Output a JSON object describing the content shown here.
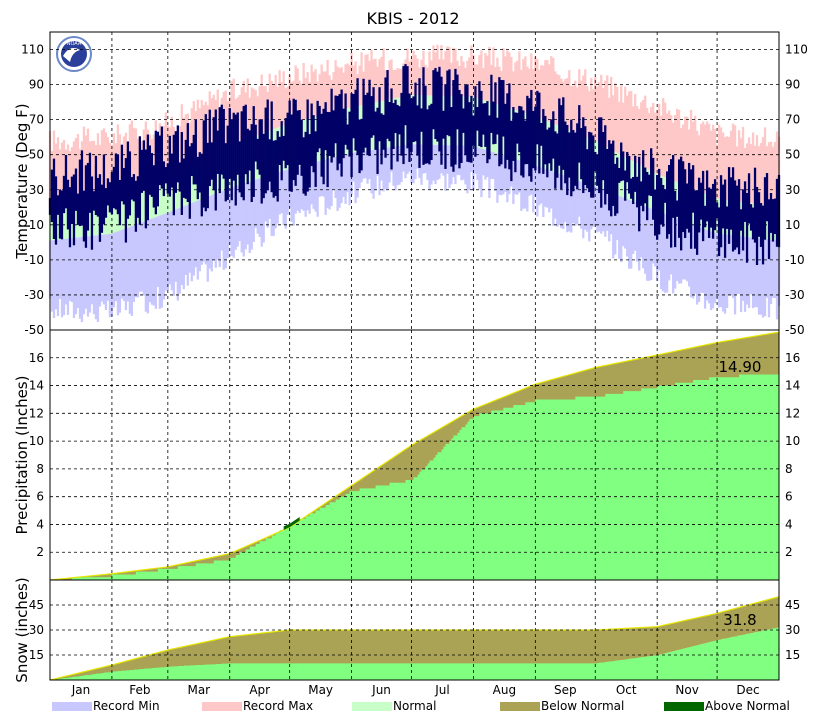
{
  "chart_data": {
    "type": "area",
    "title": "KBIS - 2012",
    "logo_text": "NOAA",
    "months": [
      "Jan",
      "Feb",
      "Mar",
      "Apr",
      "May",
      "Jun",
      "Jul",
      "Aug",
      "Sep",
      "Oct",
      "Nov",
      "Dec"
    ],
    "legend": [
      {
        "label": "Record Min",
        "color": "#c8c8ff"
      },
      {
        "label": "Record Max",
        "color": "#ffc8c8"
      },
      {
        "label": "Normal",
        "color": "#c8ffc8"
      },
      {
        "label": "Below Normal",
        "color": "#aaa355"
      },
      {
        "label": "Above Normal",
        "color": "#006600"
      }
    ],
    "colors": {
      "record_min": "#c8c8ff",
      "record_max": "#ffc8c8",
      "normal": "#c8ffc8",
      "observed_temp": "#000066",
      "observed_precip": "#80ff80",
      "normal_precip_fill": "#aaa355",
      "normal_line": "#e6e600",
      "above_normal": "#006600"
    },
    "panels": [
      {
        "id": "temperature",
        "ylabel": "Temperature (Deg F)",
        "ylim": [
          -50,
          120
        ],
        "yticks": [
          110,
          90,
          70,
          50,
          30,
          10,
          -10,
          -30,
          -50
        ],
        "ytick_labels": [
          "110",
          "90",
          "70",
          "50",
          "30",
          "10",
          "-10",
          "-30",
          "-50"
        ],
        "series": {
          "day": [
            1,
            32,
            60,
            91,
            121,
            152,
            182,
            213,
            244,
            274,
            305,
            335,
            366
          ],
          "record_max": [
            58,
            60,
            68,
            86,
            95,
            102,
            106,
            106,
            102,
            92,
            78,
            62,
            58
          ],
          "normal_high": [
            20,
            25,
            37,
            55,
            68,
            77,
            84,
            83,
            72,
            58,
            39,
            25,
            20
          ],
          "normal_low": [
            1,
            5,
            17,
            31,
            42,
            51,
            56,
            55,
            44,
            32,
            18,
            5,
            1
          ],
          "record_min": [
            -38,
            -40,
            -30,
            -8,
            14,
            28,
            38,
            34,
            20,
            5,
            -20,
            -35,
            -38
          ],
          "observed_high": [
            38,
            42,
            55,
            68,
            70,
            80,
            90,
            85,
            80,
            62,
            40,
            30,
            30
          ],
          "observed_low": [
            10,
            12,
            25,
            35,
            40,
            50,
            58,
            55,
            48,
            35,
            15,
            5,
            2
          ]
        }
      },
      {
        "id": "precipitation",
        "ylabel": "Precipitation (Inches)",
        "ylim": [
          0,
          18
        ],
        "yticks": [
          16,
          14,
          12,
          10,
          8,
          6,
          4,
          2
        ],
        "ytick_labels": [
          "16",
          "14",
          "12",
          "10",
          "8",
          "6",
          "4",
          "2"
        ],
        "annotation": "14.90",
        "series": {
          "day": [
            1,
            32,
            60,
            91,
            121,
            152,
            182,
            213,
            244,
            274,
            305,
            335,
            366
          ],
          "normal_cumulative": [
            0,
            0.45,
            0.95,
            1.9,
            3.8,
            6.8,
            9.7,
            12.3,
            14.1,
            15.3,
            16.2,
            17.1,
            17.85
          ],
          "observed_cumulative": [
            0,
            0.3,
            0.8,
            1.5,
            3.9,
            6.4,
            7.2,
            11.8,
            12.9,
            13.2,
            13.9,
            14.6,
            14.9
          ]
        }
      },
      {
        "id": "snow",
        "ylabel": "Snow (inches)",
        "ylim": [
          0,
          60
        ],
        "yticks": [
          45,
          30,
          15
        ],
        "ytick_labels": [
          "45",
          "30",
          "15"
        ],
        "annotation": "31.8",
        "series": {
          "day": [
            1,
            32,
            60,
            91,
            121,
            152,
            182,
            213,
            244,
            274,
            305,
            335,
            366
          ],
          "normal_cumulative": [
            0,
            9,
            18,
            26,
            30,
            30,
            30,
            30,
            30,
            30,
            32,
            40,
            50
          ],
          "observed_cumulative": [
            0,
            5,
            8,
            10,
            10,
            10,
            10,
            10,
            10,
            10,
            15,
            24,
            31.8
          ]
        }
      }
    ]
  }
}
